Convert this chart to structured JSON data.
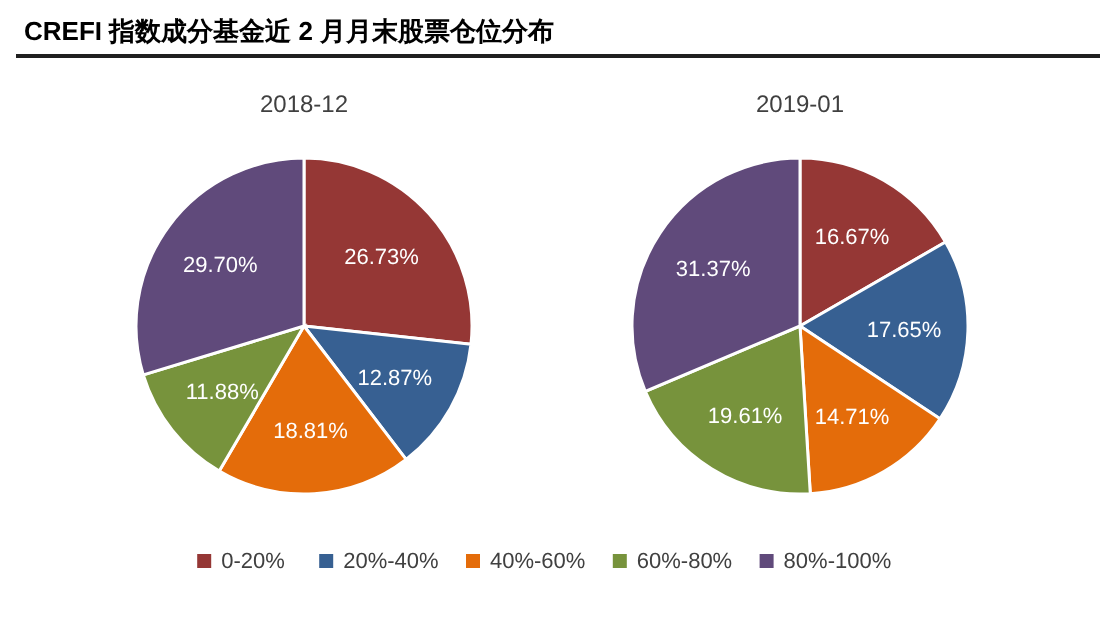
{
  "chart_data": {
    "type": "pie",
    "title": "CREFI 指数成分基金近 2 月月末股票仓位分布",
    "categories": [
      "0-20%",
      "20%-40%",
      "40%-60%",
      "60%-80%",
      "80%-100%"
    ],
    "colors": [
      "#953735",
      "#376092",
      "#e46c0a",
      "#77933c",
      "#604a7b"
    ],
    "series": [
      {
        "name": "2018-12",
        "values": [
          26.73,
          12.87,
          18.81,
          11.88,
          29.7
        ],
        "value_labels": [
          "26.73%",
          "12.87%",
          "18.81%",
          "11.88%",
          "29.70%"
        ]
      },
      {
        "name": "2019-01",
        "values": [
          16.67,
          17.65,
          14.71,
          19.61,
          31.37
        ],
        "value_labels": [
          "16.67%",
          "17.65%",
          "14.71%",
          "19.61%",
          "31.37%"
        ]
      }
    ],
    "legend": "bottom"
  }
}
